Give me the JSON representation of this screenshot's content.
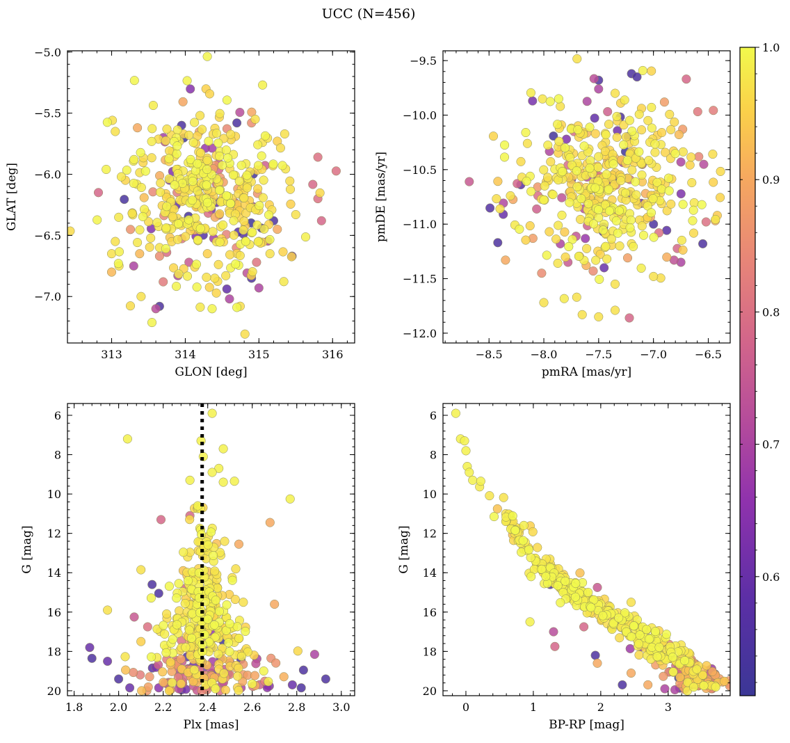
{
  "figure_title": "UCC (N=456)",
  "colorbar": {
    "range": [
      0.51,
      1.0
    ],
    "ticks": [
      "0.6",
      "0.7",
      "0.8",
      "0.9",
      "1.0"
    ],
    "tick_values": [
      0.6,
      0.7,
      0.8,
      0.9,
      1.0
    ],
    "colormap": "plasma"
  },
  "chart_data": [
    {
      "type": "scatter",
      "xlabel": "GLON [deg]",
      "ylabel": "GLAT [deg]",
      "xlim": [
        312.4,
        316.3
      ],
      "ylim": [
        -7.38,
        -4.99
      ],
      "xticks": [
        313,
        314,
        315,
        316
      ],
      "xtick_labels": [
        "313",
        "314",
        "315",
        "316"
      ],
      "yticks": [
        -5.0,
        -5.5,
        -6.0,
        -6.5,
        -7.0
      ],
      "ytick_labels": [
        "−5.0",
        "−5.5",
        "−6.0",
        "−6.5",
        "−7.0"
      ],
      "point_count": 456,
      "cluster": {
        "center": [
          314.25,
          -6.2
        ],
        "spread": [
          0.5,
          0.3
        ]
      },
      "points": [
        [
          315.05,
          -5.27,
          0.99
        ],
        [
          313.65,
          -7.08,
          0.55
        ],
        [
          313.6,
          -7.1,
          0.72
        ],
        [
          314.6,
          -7.02,
          0.7
        ],
        [
          314.9,
          -6.85,
          0.55
        ],
        [
          315.0,
          -6.93,
          0.7
        ],
        [
          312.82,
          -6.15,
          0.78
        ],
        [
          315.8,
          -5.86,
          0.8
        ],
        [
          315.85,
          -6.38,
          0.78
        ],
        [
          315.8,
          -6.2,
          0.8
        ],
        [
          313.95,
          -5.6,
          0.55
        ],
        [
          314.7,
          -5.58,
          0.55
        ],
        [
          314.9,
          -5.58,
          0.85
        ],
        [
          314.95,
          -5.55,
          0.97
        ],
        [
          313.35,
          -5.62,
          0.9
        ],
        [
          315.35,
          -5.67,
          0.97
        ],
        [
          315.25,
          -5.73,
          0.95
        ],
        [
          313.05,
          -5.65,
          0.97
        ],
        [
          313.0,
          -6.65,
          0.97
        ],
        [
          313.05,
          -6.55,
          0.97
        ],
        [
          313.0,
          -6.8,
          0.92
        ],
        [
          313.1,
          -6.75,
          0.97
        ],
        [
          313.4,
          -7.0,
          0.97
        ],
        [
          313.7,
          -6.88,
          0.82
        ],
        [
          313.9,
          -6.83,
          0.7
        ],
        [
          314.4,
          -6.85,
          0.97
        ],
        [
          314.55,
          -6.83,
          0.97
        ],
        [
          315.5,
          -6.33,
          0.97
        ],
        [
          315.25,
          -6.45,
          0.9
        ],
        [
          315.2,
          -6.38,
          0.55
        ],
        [
          315.45,
          -6.67,
          0.6
        ],
        [
          315.15,
          -6.65,
          0.97
        ],
        [
          314.2,
          -5.52,
          0.97
        ],
        [
          314.05,
          -5.68,
          0.97
        ],
        [
          313.75,
          -5.63,
          0.97
        ],
        [
          313.3,
          -6.75,
          0.7
        ],
        [
          313.38,
          -6.65,
          0.92
        ],
        [
          313.65,
          -6.67,
          0.85
        ],
        [
          314.05,
          -6.72,
          0.75
        ],
        [
          314.3,
          -6.65,
          0.95
        ]
      ]
    },
    {
      "type": "scatter",
      "xlabel": "pmRA [mas/yr]",
      "ylabel": "pmDE [mas/yr]",
      "xlim": [
        -8.92,
        -6.3
      ],
      "ylim": [
        -12.09,
        -9.41
      ],
      "xticks": [
        -8.5,
        -8.0,
        -7.5,
        -7.0,
        -6.5
      ],
      "xtick_labels": [
        "−8.5",
        "−8.0",
        "−7.5",
        "−7.0",
        "−6.5"
      ],
      "yticks": [
        -9.5,
        -10.0,
        -10.5,
        -11.0,
        -11.5,
        -12.0
      ],
      "ytick_labels": [
        "−9.5",
        "−10.0",
        "−10.5",
        "−11.0",
        "−11.5",
        "−12.0"
      ],
      "point_count": 456,
      "cluster": {
        "center": [
          -7.45,
          -10.65
        ],
        "spread": [
          0.38,
          0.32
        ]
      },
      "points": [
        [
          -8.68,
          -10.61,
          0.75
        ],
        [
          -8.4,
          -10.86,
          0.97
        ],
        [
          -8.42,
          -11.17,
          0.55
        ],
        [
          -8.35,
          -11.33,
          0.9
        ],
        [
          -8.37,
          -10.91,
          0.6
        ],
        [
          -8.0,
          -11.72,
          0.97
        ],
        [
          -8.02,
          -11.45,
          0.85
        ],
        [
          -7.78,
          -11.35,
          0.75
        ],
        [
          -7.65,
          -11.83,
          0.97
        ],
        [
          -7.5,
          -11.85,
          0.97
        ],
        [
          -7.22,
          -11.86,
          0.78
        ],
        [
          -7.35,
          -11.79,
          0.97
        ],
        [
          -7.35,
          -11.55,
          0.97
        ],
        [
          -7.7,
          -11.67,
          0.97
        ],
        [
          -7.2,
          -9.62,
          0.55
        ],
        [
          -7.15,
          -9.65,
          0.55
        ],
        [
          -6.7,
          -9.67,
          0.78
        ],
        [
          -7.5,
          -9.68,
          0.55
        ],
        [
          -7.5,
          -9.76,
          0.7
        ],
        [
          -7.35,
          -9.8,
          0.97
        ],
        [
          -6.55,
          -11.18,
          0.55
        ],
        [
          -6.52,
          -10.98,
          0.8
        ],
        [
          -6.65,
          -10.62,
          0.97
        ],
        [
          -6.75,
          -10.43,
          0.7
        ],
        [
          -6.9,
          -9.88,
          0.88
        ],
        [
          -7.85,
          -9.92,
          0.97
        ],
        [
          -8.15,
          -10.26,
          0.97
        ],
        [
          -8.2,
          -10.57,
          0.97
        ],
        [
          -8.1,
          -11.13,
          0.88
        ],
        [
          -7.0,
          -11.0,
          0.55
        ],
        [
          -6.95,
          -11.08,
          0.8
        ],
        [
          -6.75,
          -11.35,
          0.7
        ],
        [
          -7.0,
          -11.48,
          0.97
        ],
        [
          -7.45,
          -11.4,
          0.6
        ],
        [
          -7.55,
          -11.43,
          0.85
        ],
        [
          -7.2,
          -11.18,
          0.97
        ],
        [
          -7.05,
          -10.05,
          0.97
        ],
        [
          -7.85,
          -11.18,
          0.7
        ],
        [
          -7.75,
          -10.75,
          0.97
        ],
        [
          -7.25,
          -10.2,
          0.97
        ]
      ]
    },
    {
      "type": "scatter",
      "xlabel": "Plx [mas]",
      "ylabel": "G [mag]",
      "xlim": [
        1.77,
        3.06
      ],
      "ylim": [
        20.25,
        5.4
      ],
      "y_inverted": true,
      "xticks": [
        1.8,
        2.0,
        2.2,
        2.4,
        2.6,
        2.8,
        3.0
      ],
      "xtick_labels": [
        "1.8",
        "2.0",
        "2.2",
        "2.4",
        "2.6",
        "2.8",
        "3.0"
      ],
      "yticks": [
        6,
        8,
        10,
        12,
        14,
        16,
        18,
        20
      ],
      "ytick_labels": [
        "6",
        "8",
        "10",
        "12",
        "14",
        "16",
        "18",
        "20"
      ],
      "reference_line": {
        "x": 2.375,
        "style": "dotted",
        "color": "#000000"
      },
      "point_count": 456,
      "points": [
        [
          2.42,
          5.9,
          0.99
        ],
        [
          2.04,
          7.2,
          0.99
        ],
        [
          2.37,
          7.3,
          0.99
        ],
        [
          2.38,
          8.1,
          0.99
        ],
        [
          2.45,
          8.7,
          0.99
        ],
        [
          2.42,
          8.9,
          0.99
        ],
        [
          2.47,
          7.7,
          0.99
        ],
        [
          2.32,
          9.3,
          0.99
        ],
        [
          2.47,
          9.4,
          0.99
        ],
        [
          2.52,
          9.35,
          0.99
        ],
        [
          2.77,
          10.25,
          0.99
        ],
        [
          2.68,
          11.45,
          0.9
        ],
        [
          2.19,
          11.3,
          0.78
        ],
        [
          2.32,
          11.1,
          0.78
        ],
        [
          2.54,
          12.55,
          0.9
        ],
        [
          2.1,
          13.85,
          0.97
        ],
        [
          2.15,
          14.6,
          0.55
        ],
        [
          2.18,
          15.05,
          0.55
        ],
        [
          2.51,
          14.25,
          0.97
        ],
        [
          2.7,
          15.6,
          0.9
        ],
        [
          2.56,
          15.5,
          0.97
        ],
        [
          1.95,
          15.9,
          0.97
        ],
        [
          2.3,
          14.8,
          0.78
        ],
        [
          2.31,
          13.2,
          0.97
        ],
        [
          1.87,
          17.8,
          0.6
        ],
        [
          1.88,
          18.35,
          0.55
        ],
        [
          1.95,
          18.5,
          0.6
        ],
        [
          2.0,
          19.4,
          0.55
        ],
        [
          2.05,
          19.85,
          0.6
        ],
        [
          2.93,
          19.4,
          0.55
        ],
        [
          2.88,
          18.15,
          0.7
        ],
        [
          2.83,
          18.95,
          0.55
        ],
        [
          2.82,
          19.85,
          0.55
        ],
        [
          2.78,
          19.7,
          0.6
        ],
        [
          2.18,
          19.85,
          0.65
        ],
        [
          2.27,
          19.9,
          0.72
        ],
        [
          2.55,
          19.85,
          0.7
        ],
        [
          2.07,
          16.25,
          0.75
        ],
        [
          2.13,
          16.75,
          0.8
        ],
        [
          2.1,
          17.5,
          0.95
        ]
      ]
    },
    {
      "type": "scatter",
      "xlabel": "BP-RP [mag]",
      "ylabel": "G [mag]",
      "xlim": [
        -0.34,
        3.92
      ],
      "ylim": [
        20.25,
        5.4
      ],
      "y_inverted": true,
      "xticks": [
        0,
        1,
        2,
        3
      ],
      "xtick_labels": [
        "0",
        "1",
        "2",
        "3"
      ],
      "yticks": [
        6,
        8,
        10,
        12,
        14,
        16,
        18,
        20
      ],
      "ytick_labels": [
        "6",
        "8",
        "10",
        "12",
        "14",
        "16",
        "18",
        "20"
      ],
      "point_count": 456,
      "sequence": [
        [
          -0.15,
          5.9
        ],
        [
          0.0,
          7.4
        ],
        [
          0.1,
          9.2
        ],
        [
          0.4,
          10.3
        ],
        [
          0.6,
          11.2
        ],
        [
          1.0,
          13.0
        ],
        [
          1.3,
          14.2
        ],
        [
          1.8,
          15.4
        ],
        [
          2.3,
          16.5
        ],
        [
          2.8,
          17.7
        ],
        [
          3.2,
          18.6
        ],
        [
          3.55,
          19.4
        ]
      ],
      "points": [
        [
          -0.15,
          5.9,
          0.99
        ],
        [
          -0.08,
          7.2,
          0.99
        ],
        [
          -0.02,
          7.3,
          0.99
        ],
        [
          0.0,
          7.8,
          0.99
        ],
        [
          0.02,
          8.6,
          0.99
        ],
        [
          0.05,
          8.9,
          0.99
        ],
        [
          0.1,
          9.3,
          0.99
        ],
        [
          0.22,
          9.35,
          0.99
        ],
        [
          0.95,
          16.5,
          0.99
        ],
        [
          1.3,
          17.0,
          0.72
        ],
        [
          1.32,
          17.75,
          0.78
        ],
        [
          1.25,
          14.6,
          0.55
        ],
        [
          1.95,
          14.75,
          0.75
        ],
        [
          1.92,
          18.2,
          0.55
        ],
        [
          1.75,
          16.75,
          0.78
        ],
        [
          1.95,
          18.6,
          0.9
        ],
        [
          2.32,
          19.7,
          0.55
        ],
        [
          2.45,
          19.1,
          0.9
        ],
        [
          2.7,
          19.7,
          0.9
        ],
        [
          2.95,
          19.9,
          0.7
        ],
        [
          3.1,
          19.95,
          0.7
        ],
        [
          3.3,
          19.75,
          0.6
        ],
        [
          3.5,
          19.3,
          0.65
        ],
        [
          3.7,
          19.2,
          0.9
        ],
        [
          2.45,
          15.5,
          0.97
        ],
        [
          2.5,
          16.2,
          0.97
        ],
        [
          2.05,
          16.0,
          0.97
        ],
        [
          2.2,
          16.5,
          0.97
        ],
        [
          1.55,
          15.3,
          0.97
        ],
        [
          1.2,
          14.1,
          0.97
        ],
        [
          0.85,
          12.8,
          0.97
        ],
        [
          0.7,
          11.4,
          0.97
        ]
      ]
    }
  ]
}
